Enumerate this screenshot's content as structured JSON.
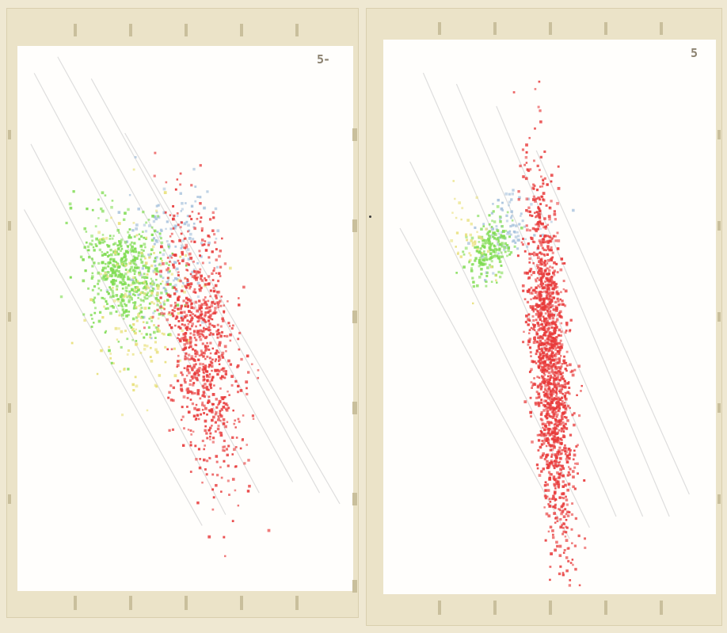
{
  "panels": [
    {
      "id": "left",
      "corner_label": "5-"
    },
    {
      "id": "right",
      "corner_label": "5"
    }
  ],
  "colors": {
    "background": "#efe8d2",
    "frame": "#ebe3c8",
    "tick": "#c9bf9c",
    "contour": "#d6d6d6",
    "blue": "#a9c3dd",
    "green": "#7fdc52",
    "yellow": "#e8e07a",
    "red": "#e83a3a"
  },
  "chart_data": [
    {
      "type": "scatter",
      "title": "",
      "xlabel": "",
      "ylabel": "",
      "xlim": [
        0,
        1
      ],
      "ylim": [
        0,
        1
      ],
      "grid": false,
      "series": [
        {
          "color": "#a9c3dd",
          "center": [
            0.46,
            0.62
          ],
          "spread": [
            0.06,
            0.06
          ],
          "tilt": -0.6,
          "count": 140
        },
        {
          "color": "#7fdc52",
          "center": [
            0.33,
            0.58
          ],
          "spread": [
            0.07,
            0.05
          ],
          "tilt": -0.4,
          "count": 520
        },
        {
          "color": "#e8e07a",
          "center": [
            0.38,
            0.52
          ],
          "spread": [
            0.09,
            0.09
          ],
          "tilt": -0.8,
          "count": 160
        },
        {
          "color": "#e83a3a",
          "center": [
            0.55,
            0.45
          ],
          "spread": [
            0.12,
            0.05
          ],
          "tilt": -1.35,
          "count": 820
        }
      ]
    },
    {
      "type": "scatter",
      "title": "",
      "xlabel": "",
      "ylabel": "",
      "xlim": [
        0,
        1
      ],
      "ylim": [
        0,
        1
      ],
      "grid": false,
      "series": [
        {
          "color": "#a9c3dd",
          "center": [
            0.38,
            0.66
          ],
          "spread": [
            0.03,
            0.05
          ],
          "tilt": -1.2,
          "count": 90
        },
        {
          "color": "#7fdc52",
          "center": [
            0.32,
            0.62
          ],
          "spread": [
            0.025,
            0.035
          ],
          "tilt": -1.0,
          "count": 180
        },
        {
          "color": "#e8e07a",
          "center": [
            0.27,
            0.63
          ],
          "spread": [
            0.04,
            0.03
          ],
          "tilt": -0.8,
          "count": 40
        },
        {
          "color": "#e83a3a",
          "center": [
            0.5,
            0.42
          ],
          "spread": [
            0.17,
            0.028
          ],
          "tilt": -1.45,
          "count": 1500
        }
      ]
    }
  ]
}
